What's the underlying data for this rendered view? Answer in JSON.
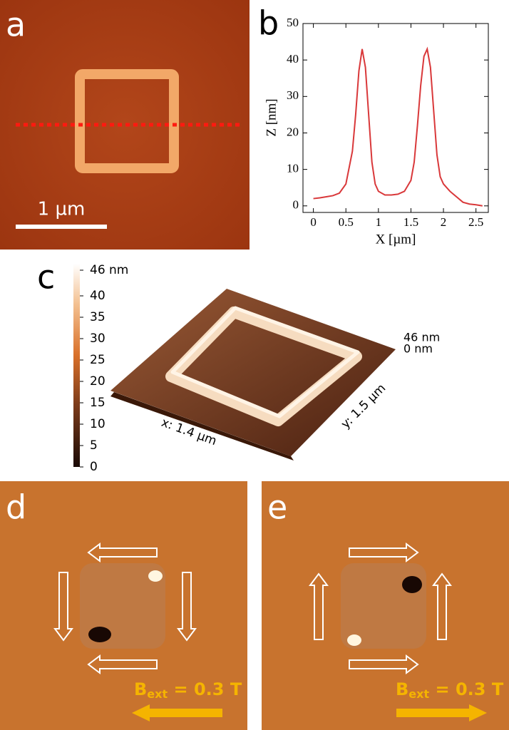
{
  "panels": {
    "a": {
      "label": "a",
      "scale_bar": "1 µm"
    },
    "b": {
      "label": "b"
    },
    "c": {
      "label": "c",
      "z_top": "46 nm",
      "z_bottom": "0 nm",
      "x_size": "x: 1.4 µm",
      "y_size": "y: 1.5 µm",
      "colorbar": {
        "lim": [
          0,
          47.5
        ],
        "ticks": [
          0,
          5,
          10,
          15,
          20,
          25,
          30,
          35,
          40,
          {
            "value": 46,
            "label": "46 nm"
          }
        ]
      }
    },
    "d": {
      "label": "d",
      "field": {
        "main": "B",
        "sub": "ext",
        "rest": " = 0.3 T"
      }
    },
    "e": {
      "label": "e",
      "field": {
        "main": "B",
        "sub": "ext",
        "rest": " = 0.3 T"
      }
    }
  },
  "chart_data": {
    "type": "line",
    "color": "#d9383a",
    "xlabel": "X [µm]",
    "ylabel": "Z [nm]",
    "x": [
      0,
      0.1,
      0.2,
      0.3,
      0.4,
      0.5,
      0.6,
      0.65,
      0.7,
      0.75,
      0.8,
      0.85,
      0.9,
      0.95,
      1.0,
      1.1,
      1.2,
      1.3,
      1.4,
      1.5,
      1.55,
      1.6,
      1.65,
      1.7,
      1.75,
      1.8,
      1.85,
      1.9,
      1.95,
      2.0,
      2.1,
      2.2,
      2.3,
      2.4,
      2.5,
      2.6
    ],
    "values": [
      2,
      2.2,
      2.5,
      2.8,
      3.5,
      6,
      15,
      25,
      37,
      43,
      38,
      25,
      12,
      6,
      4,
      3,
      3,
      3.2,
      4,
      7,
      12,
      22,
      33,
      41,
      43,
      38,
      26,
      14,
      8,
      6,
      4,
      2.5,
      1,
      0.5,
      0.3,
      0
    ],
    "xlim": [
      -0.16,
      2.69
    ],
    "ylim": [
      -1.8,
      50
    ],
    "xticks": [
      0,
      0.5,
      1,
      1.5,
      2,
      2.5
    ],
    "yticks": [
      0,
      10,
      20,
      30,
      40,
      50
    ]
  }
}
